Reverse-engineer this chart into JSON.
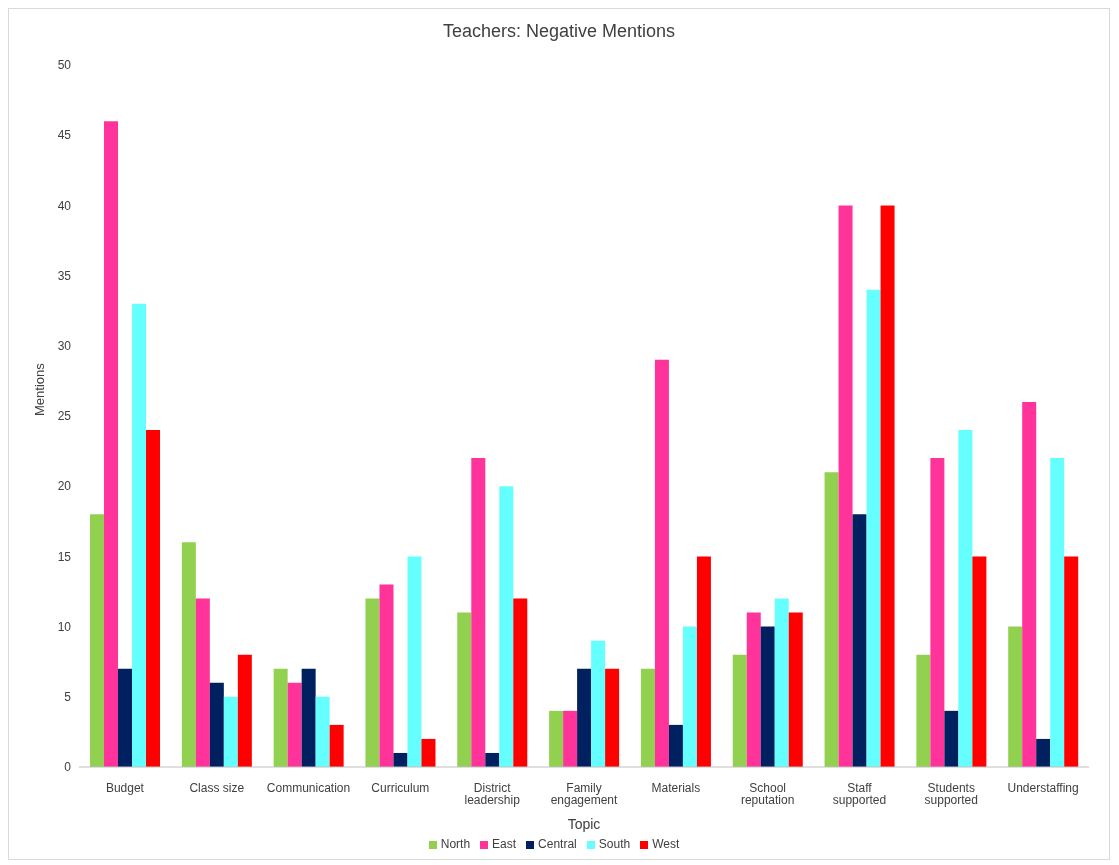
{
  "chart_data": {
    "type": "bar",
    "title": "Teachers: Negative Mentions",
    "xlabel": "Topic",
    "ylabel": "Mentions",
    "categories": [
      "Budget",
      "Class size",
      "Communication",
      "Curriculum",
      "District leadership",
      "Family engagement",
      "Materials",
      "School reputation",
      "Staff supported",
      "Students supported",
      "Understaffing"
    ],
    "series": [
      {
        "name": "North",
        "color": "#92d050",
        "values": [
          18,
          16,
          7,
          12,
          11,
          4,
          7,
          8,
          21,
          8,
          10
        ]
      },
      {
        "name": "East",
        "color": "#ff3399",
        "values": [
          46,
          12,
          6,
          13,
          22,
          4,
          29,
          11,
          40,
          22,
          26
        ]
      },
      {
        "name": "Central",
        "color": "#002060",
        "values": [
          7,
          6,
          7,
          1,
          1,
          7,
          3,
          10,
          18,
          4,
          2
        ]
      },
      {
        "name": "South",
        "color": "#66ffff",
        "values": [
          33,
          5,
          5,
          15,
          20,
          9,
          10,
          12,
          34,
          24,
          22
        ]
      },
      {
        "name": "West",
        "color": "#ff0000",
        "values": [
          24,
          8,
          3,
          2,
          12,
          7,
          15,
          11,
          40,
          15,
          15
        ]
      }
    ],
    "ylim": [
      0,
      50
    ],
    "yticks": [
      0,
      5,
      10,
      15,
      20,
      25,
      30,
      35,
      40,
      45,
      50
    ],
    "grid": false,
    "legend": "bottom"
  }
}
